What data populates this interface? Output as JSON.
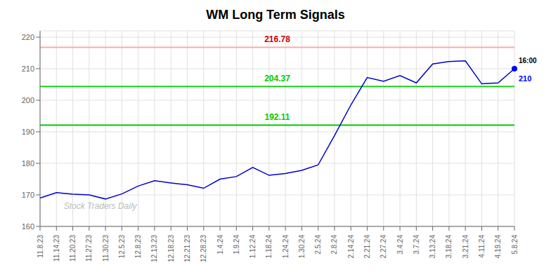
{
  "chart_data": {
    "type": "line",
    "title": "WM Long Term Signals",
    "categories": [
      "11.8.23",
      "11.14.23",
      "11.20.23",
      "11.27.23",
      "11.30.23",
      "12.5.23",
      "12.8.23",
      "12.13.23",
      "12.18.23",
      "12.21.23",
      "12.28.23",
      "1.4.24",
      "1.9.24",
      "1.12.24",
      "1.18.24",
      "1.24.24",
      "1.30.24",
      "2.5.24",
      "2.8.24",
      "2.14.24",
      "2.21.24",
      "2.27.24",
      "3.4.24",
      "3.7.24",
      "3.13.24",
      "3.18.24",
      "3.21.24",
      "4.11.24",
      "4.19.24",
      "5.8.24"
    ],
    "values": [
      169.0,
      170.7,
      170.2,
      170.0,
      168.7,
      170.3,
      172.8,
      174.5,
      173.8,
      173.2,
      172.1,
      175.0,
      175.8,
      178.7,
      176.2,
      176.8,
      177.8,
      179.5,
      188.8,
      198.5,
      207.2,
      206.0,
      207.8,
      205.5,
      211.5,
      212.3,
      212.5,
      205.2,
      205.5,
      210.0
    ],
    "color": "#0000cc",
    "ylim": [
      160,
      222
    ],
    "yticks": [
      160,
      170,
      180,
      190,
      200,
      210,
      220
    ],
    "grid": true,
    "reference_lines": [
      {
        "value": 216.78,
        "label": "216.78",
        "color": "#ffaaaa",
        "label_color": "#cc0000"
      },
      {
        "value": 204.37,
        "label": "204.37",
        "color": "#00cc00",
        "label_color": "#00cc00"
      },
      {
        "value": 192.11,
        "label": "192.11",
        "color": "#00cc00",
        "label_color": "#00cc00"
      }
    ],
    "last_point": {
      "color": "#0000ff",
      "label": "16:00",
      "value_label": "210"
    },
    "watermark": {
      "text": "Stock Traders Daily",
      "color": "#bbbbbb"
    }
  }
}
